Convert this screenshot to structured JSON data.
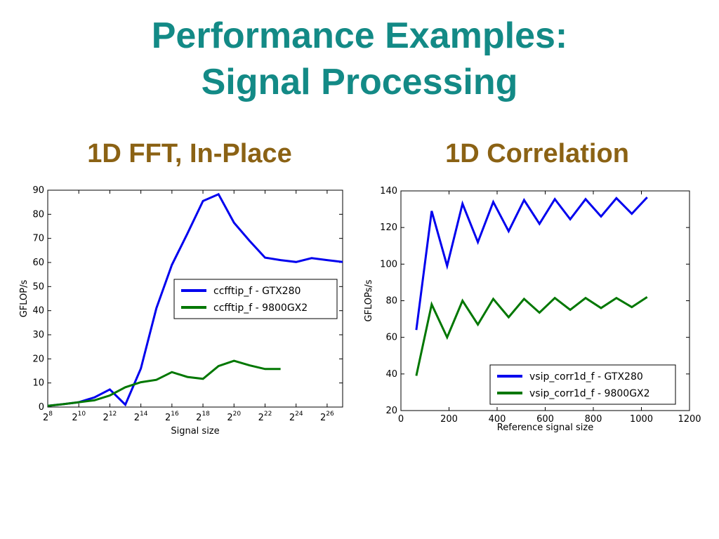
{
  "slide": {
    "title_line1": "Performance Examples:",
    "title_line2": "Signal Processing"
  },
  "chart_data": [
    {
      "type": "line",
      "title": "1D FFT, In-Place",
      "xlabel": "Signal size",
      "ylabel": "GFLOP/s",
      "xscale": "log2",
      "xlim": [
        256,
        134217728
      ],
      "ylim": [
        0,
        90
      ],
      "xticks": [
        {
          "base": "2",
          "exp": "8",
          "value": 256
        },
        {
          "base": "2",
          "exp": "10",
          "value": 1024
        },
        {
          "base": "2",
          "exp": "12",
          "value": 4096
        },
        {
          "base": "2",
          "exp": "14",
          "value": 16384
        },
        {
          "base": "2",
          "exp": "16",
          "value": 65536
        },
        {
          "base": "2",
          "exp": "18",
          "value": 262144
        },
        {
          "base": "2",
          "exp": "20",
          "value": 1048576
        },
        {
          "base": "2",
          "exp": "22",
          "value": 4194304
        },
        {
          "base": "2",
          "exp": "24",
          "value": 16777216
        },
        {
          "base": "2",
          "exp": "26",
          "value": 67108864
        }
      ],
      "yticks": [
        "0",
        "10",
        "20",
        "30",
        "40",
        "50",
        "60",
        "70",
        "80",
        "90"
      ],
      "legend_position": "center-right",
      "series": [
        {
          "name": "ccfftip_f - GTX280",
          "color": "#0000ee",
          "x": [
            256,
            512,
            1024,
            2048,
            4096,
            8192,
            16384,
            32768,
            65536,
            131072,
            262144,
            524288,
            1048576,
            2097152,
            4194304,
            8388608,
            16777216,
            33554432,
            67108864,
            134217728
          ],
          "y": [
            0.5,
            1.2,
            2,
            4,
            7.3,
            1,
            16,
            41,
            59,
            72,
            85.5,
            88.3,
            76.5,
            69,
            62,
            61,
            60.2,
            61.8,
            61,
            60.2
          ]
        },
        {
          "name": "ccfftip_f - 9800GX2",
          "color": "#007700",
          "x": [
            256,
            512,
            1024,
            2048,
            4096,
            8192,
            16384,
            32768,
            65536,
            131072,
            262144,
            524288,
            1048576,
            2097152,
            4194304,
            8388608
          ],
          "y": [
            0.5,
            1.2,
            2,
            2.8,
            4.8,
            8.2,
            10.3,
            11.3,
            14.5,
            12.5,
            11.7,
            17,
            19.2,
            17.3,
            15.8,
            15.8
          ]
        }
      ]
    },
    {
      "type": "line",
      "title": "1D Correlation",
      "xlabel": "Reference signal size",
      "ylabel": "GFLOPs/s",
      "xlim": [
        0,
        1200
      ],
      "ylim": [
        20,
        140
      ],
      "xticks": [
        "0",
        "200",
        "400",
        "600",
        "800",
        "1000",
        "1200"
      ],
      "yticks": [
        "20",
        "40",
        "60",
        "80",
        "100",
        "120",
        "140"
      ],
      "legend_position": "lower-right",
      "series": [
        {
          "name": "vsip_corr1d_f - GTX280",
          "color": "#0000ee",
          "x": [
            64,
            128,
            192,
            256,
            320,
            384,
            448,
            512,
            576,
            640,
            704,
            768,
            832,
            896,
            960,
            1024
          ],
          "y": [
            64,
            129,
            99,
            133,
            112,
            134,
            118,
            135,
            122,
            135.5,
            124.5,
            135.5,
            126,
            136,
            127.5,
            136.5
          ]
        },
        {
          "name": "vsip_corr1d_f - 9800GX2",
          "color": "#007700",
          "x": [
            64,
            128,
            192,
            256,
            320,
            384,
            448,
            512,
            576,
            640,
            704,
            768,
            832,
            896,
            960,
            1024
          ],
          "y": [
            39,
            78,
            60,
            80,
            67,
            81,
            71,
            81,
            73.5,
            81.5,
            75,
            81.5,
            76,
            81.5,
            76.5,
            82
          ]
        }
      ]
    }
  ]
}
